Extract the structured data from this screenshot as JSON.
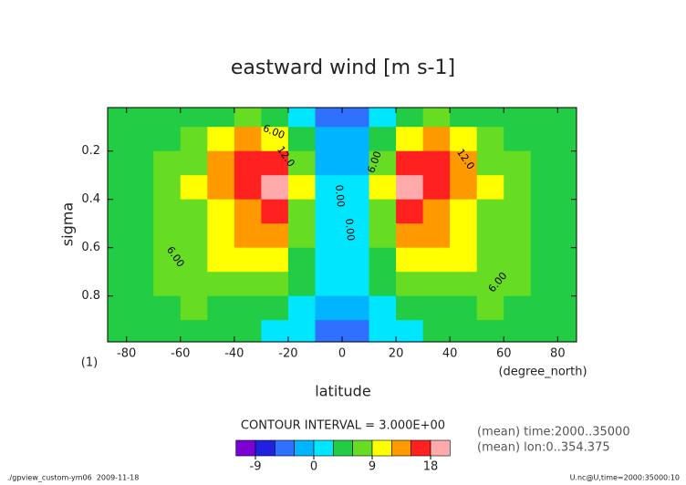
{
  "chart_data": {
    "type": "contour",
    "title": "eastward wind [m s-1]",
    "xlabel": "latitude",
    "ylabel": "sigma",
    "x_axis_prefix": "(1)",
    "x_unit": "(degree_north)",
    "x": [
      -85,
      -75,
      -65,
      -55,
      -45,
      -35,
      -25,
      -15,
      -5,
      5,
      15,
      25,
      35,
      45,
      55,
      65,
      75,
      85
    ],
    "y": [
      0.05,
      0.15,
      0.25,
      0.35,
      0.45,
      0.55,
      0.65,
      0.75,
      0.85,
      0.95
    ],
    "z": [
      [
        3,
        3,
        4,
        4,
        5,
        6,
        4,
        0,
        -6,
        -6,
        0,
        4,
        6,
        5,
        4,
        4,
        3,
        3
      ],
      [
        3,
        4,
        5,
        7,
        10,
        12,
        10,
        4,
        -2,
        -2,
        4,
        10,
        12,
        10,
        7,
        5,
        4,
        3
      ],
      [
        3,
        4,
        6,
        8,
        12,
        16,
        17,
        7,
        -1,
        -1,
        7,
        17,
        16,
        12,
        8,
        6,
        4,
        3
      ],
      [
        3,
        5,
        6,
        9,
        12,
        17,
        19,
        9,
        0,
        0,
        9,
        19,
        17,
        12,
        9,
        6,
        5,
        3
      ],
      [
        3,
        5,
        6,
        8,
        11,
        14,
        16,
        8,
        0,
        0,
        8,
        16,
        14,
        11,
        8,
        6,
        5,
        3
      ],
      [
        4,
        5,
        6,
        8,
        10,
        12,
        12,
        6,
        1,
        1,
        6,
        12,
        12,
        10,
        8,
        6,
        5,
        4
      ],
      [
        4,
        5,
        6,
        8,
        9,
        10,
        9,
        5,
        1,
        1,
        5,
        9,
        10,
        9,
        8,
        6,
        5,
        4
      ],
      [
        4,
        5,
        6,
        7,
        7,
        7,
        6,
        3,
        0,
        0,
        3,
        6,
        7,
        7,
        7,
        6,
        5,
        4
      ],
      [
        4,
        5,
        5,
        6,
        5,
        5,
        4,
        1,
        -3,
        -3,
        1,
        4,
        5,
        5,
        6,
        5,
        5,
        4
      ],
      [
        3,
        4,
        4,
        4,
        3,
        3,
        2,
        0,
        -6,
        -6,
        0,
        2,
        3,
        3,
        4,
        4,
        4,
        3
      ]
    ],
    "xlim": [
      -87,
      87
    ],
    "ylim": [
      0.02,
      0.99
    ],
    "y_inverted": true,
    "xticks": [
      -80,
      -60,
      -40,
      -20,
      0,
      20,
      40,
      60,
      80
    ],
    "yticks": [
      0.2,
      0.4,
      0.6,
      0.8
    ],
    "levels": [
      -12,
      -9,
      -6,
      -3,
      0,
      3,
      6,
      9,
      12,
      15,
      18,
      21
    ],
    "colors": [
      "#7a00d6",
      "#2020e0",
      "#3070ff",
      "#00b4ff",
      "#00e6ff",
      "#22cc44",
      "#66dd22",
      "#ffff00",
      "#ff9900",
      "#ff2020",
      "#ffaaaa"
    ],
    "colorbar_ticks": [
      -9,
      0,
      9,
      18
    ],
    "contour_interval": "CONTOUR INTERVAL = 3.000E+00",
    "contour_labels": [
      "6.00",
      "12.0",
      "6.00",
      "0.00",
      "0.00",
      "6.00",
      "12.0",
      "6.00"
    ],
    "notes": [
      "(mean) time:2000..35000",
      "(mean) lon:0..354.375"
    ],
    "footer_left": "./gpview_custom-ym06  2009-11-18",
    "footer_right": "U.nc@U,time=2000:35000:10"
  }
}
